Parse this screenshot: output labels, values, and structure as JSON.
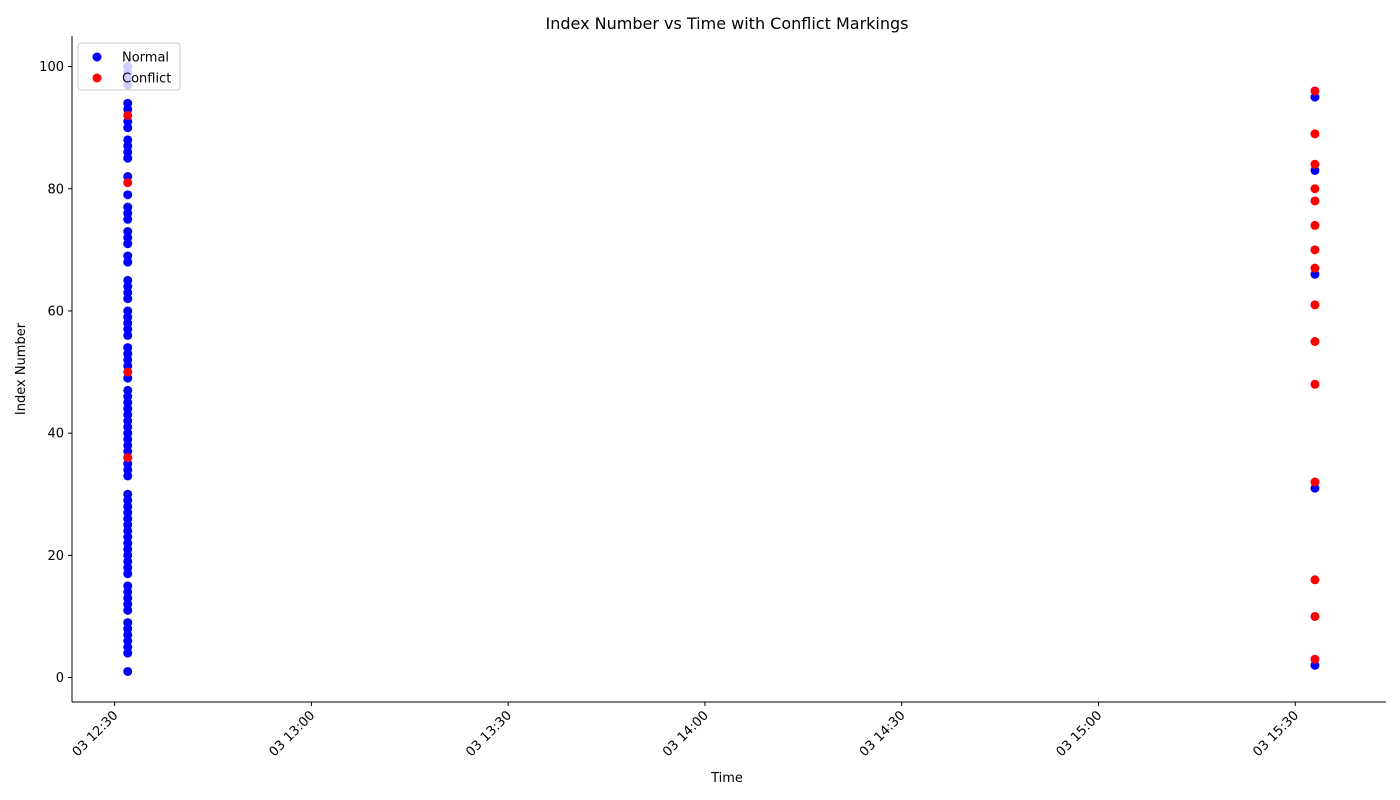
{
  "chart_data": {
    "type": "scatter",
    "title": "Index Number vs Time with Conflict Markings",
    "xlabel": "Time",
    "ylabel": "Index Number",
    "x_axis_kind": "time",
    "xlim": [
      "03 12:23:30",
      "03 15:43:50"
    ],
    "ylim": [
      -4,
      105
    ],
    "x_ticks": [
      {
        "time": "03 12:30",
        "label": "03 12:30"
      },
      {
        "time": "03 13:00",
        "label": "03 13:00"
      },
      {
        "time": "03 13:30",
        "label": "03 13:30"
      },
      {
        "time": "03 14:00",
        "label": "03 14:00"
      },
      {
        "time": "03 14:30",
        "label": "03 14:30"
      },
      {
        "time": "03 15:00",
        "label": "03 15:00"
      },
      {
        "time": "03 15:30",
        "label": "03 15:30"
      }
    ],
    "y_ticks": [
      0,
      20,
      40,
      60,
      80,
      100
    ],
    "grid": false,
    "legend": {
      "position": "upper-left",
      "entries": [
        "Normal",
        "Conflict"
      ]
    },
    "series": [
      {
        "name": "Normal",
        "color": "#0000ff",
        "points": [
          {
            "x": "03 12:32",
            "y": [
              1,
              4,
              5,
              6,
              7,
              8,
              9,
              11,
              12,
              13,
              14,
              15,
              17,
              18,
              19,
              20,
              21,
              22,
              23,
              24,
              25,
              26,
              27,
              28,
              29,
              30,
              33,
              34,
              35,
              37,
              38,
              39,
              40,
              41,
              42,
              43,
              44,
              45,
              46,
              47,
              49,
              51,
              52,
              53,
              54,
              56,
              57,
              58,
              59,
              60,
              62,
              63,
              64,
              65,
              68,
              69,
              71,
              72,
              73,
              75,
              76,
              77,
              79,
              82,
              85,
              86,
              87,
              88,
              90,
              91,
              93,
              94,
              97,
              98,
              99,
              100
            ]
          },
          {
            "x": "03 15:33",
            "y": [
              2,
              31,
              66,
              83,
              95
            ]
          }
        ]
      },
      {
        "name": "Conflict",
        "color": "#ff0000",
        "points": [
          {
            "x": "03 12:32",
            "y": [
              36,
              50,
              81,
              92
            ]
          },
          {
            "x": "03 15:33",
            "y": [
              3,
              10,
              16,
              32,
              48,
              55,
              61,
              67,
              70,
              74,
              78,
              80,
              84,
              89,
              96
            ]
          }
        ]
      }
    ]
  }
}
